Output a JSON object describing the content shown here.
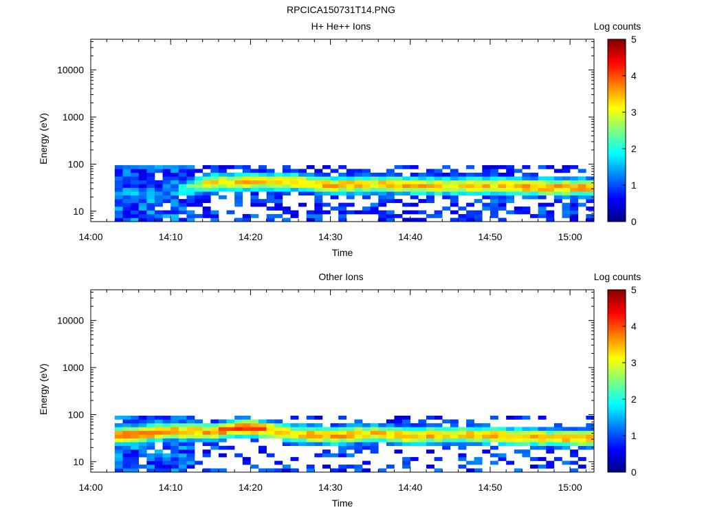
{
  "figure": {
    "title": "RPCICA150731T14.PNG"
  },
  "colors": {
    "colormap": [
      "#00007f",
      "#0000ff",
      "#007fff",
      "#00ffff",
      "#7fff7f",
      "#ffff00",
      "#ff7f00",
      "#ff0000",
      "#7f0000"
    ],
    "background": "#ffffff",
    "axis": "#000000"
  },
  "chart_data": [
    {
      "type": "heatmap",
      "title": "H+ He++ Ions",
      "xlabel": "Time",
      "ylabel": "Energy (eV)",
      "xlim": [
        "14:00",
        "15:03"
      ],
      "ylim": [
        6,
        45000
      ],
      "yscale": "log",
      "xticks": [
        "14:00",
        "14:10",
        "14:20",
        "14:30",
        "14:40",
        "14:50",
        "15:00"
      ],
      "yticks": [
        "10",
        "100",
        "1000",
        "10000"
      ],
      "colorbar": {
        "label": "Log counts",
        "range": [
          0,
          5
        ],
        "ticks": [
          "0",
          "1",
          "2",
          "3",
          "4",
          "5"
        ]
      },
      "data_extent": {
        "time_start": "14:03",
        "time_end": "15:03",
        "energy_min_eV": 6,
        "energy_max_eV": 95
      },
      "peak_band": [
        {
          "time": "14:05",
          "energy_eV": 25,
          "log_counts": 1.4
        },
        {
          "time": "14:10",
          "energy_eV": 25,
          "log_counts": 1.3
        },
        {
          "time": "14:15",
          "energy_eV": 40,
          "log_counts": 3.3
        },
        {
          "time": "14:20",
          "energy_eV": 42,
          "log_counts": 3.4
        },
        {
          "time": "14:25",
          "energy_eV": 42,
          "log_counts": 3.4
        },
        {
          "time": "14:30",
          "energy_eV": 35,
          "log_counts": 3.6
        },
        {
          "time": "14:35",
          "energy_eV": 38,
          "log_counts": 3.3
        },
        {
          "time": "14:40",
          "energy_eV": 35,
          "log_counts": 3.5
        },
        {
          "time": "14:45",
          "energy_eV": 34,
          "log_counts": 3.3
        },
        {
          "time": "14:50",
          "energy_eV": 35,
          "log_counts": 3.4
        },
        {
          "time": "14:55",
          "energy_eV": 33,
          "log_counts": 3.5
        },
        {
          "time": "15:00",
          "energy_eV": 32,
          "log_counts": 3.6
        }
      ]
    },
    {
      "type": "heatmap",
      "title": "Other Ions",
      "xlabel": "Time",
      "ylabel": "Energy (eV)",
      "xlim": [
        "14:00",
        "15:03"
      ],
      "ylim": [
        6,
        45000
      ],
      "yscale": "log",
      "xticks": [
        "14:00",
        "14:10",
        "14:20",
        "14:30",
        "14:40",
        "14:50",
        "15:00"
      ],
      "yticks": [
        "10",
        "100",
        "1000",
        "10000"
      ],
      "colorbar": {
        "label": "Log counts",
        "range": [
          0,
          5
        ],
        "ticks": [
          "0",
          "1",
          "2",
          "3",
          "4",
          "5"
        ]
      },
      "data_extent": {
        "time_start": "14:03",
        "time_end": "15:03",
        "energy_min_eV": 6,
        "energy_max_eV": 95
      },
      "peak_band": [
        {
          "time": "14:05",
          "energy_eV": 36,
          "log_counts": 3.9
        },
        {
          "time": "14:10",
          "energy_eV": 45,
          "log_counts": 3.5
        },
        {
          "time": "14:15",
          "energy_eV": 42,
          "log_counts": 3.5
        },
        {
          "time": "14:19",
          "energy_eV": 55,
          "log_counts": 4.2
        },
        {
          "time": "14:25",
          "energy_eV": 40,
          "log_counts": 3.3
        },
        {
          "time": "14:30",
          "energy_eV": 35,
          "log_counts": 3.6
        },
        {
          "time": "14:35",
          "energy_eV": 40,
          "log_counts": 3.4
        },
        {
          "time": "14:40",
          "energy_eV": 35,
          "log_counts": 3.5
        },
        {
          "time": "14:45",
          "energy_eV": 38,
          "log_counts": 3.3
        },
        {
          "time": "14:50",
          "energy_eV": 36,
          "log_counts": 3.4
        },
        {
          "time": "14:55",
          "energy_eV": 33,
          "log_counts": 3.4
        },
        {
          "time": "15:00",
          "energy_eV": 32,
          "log_counts": 3.5
        }
      ]
    }
  ]
}
